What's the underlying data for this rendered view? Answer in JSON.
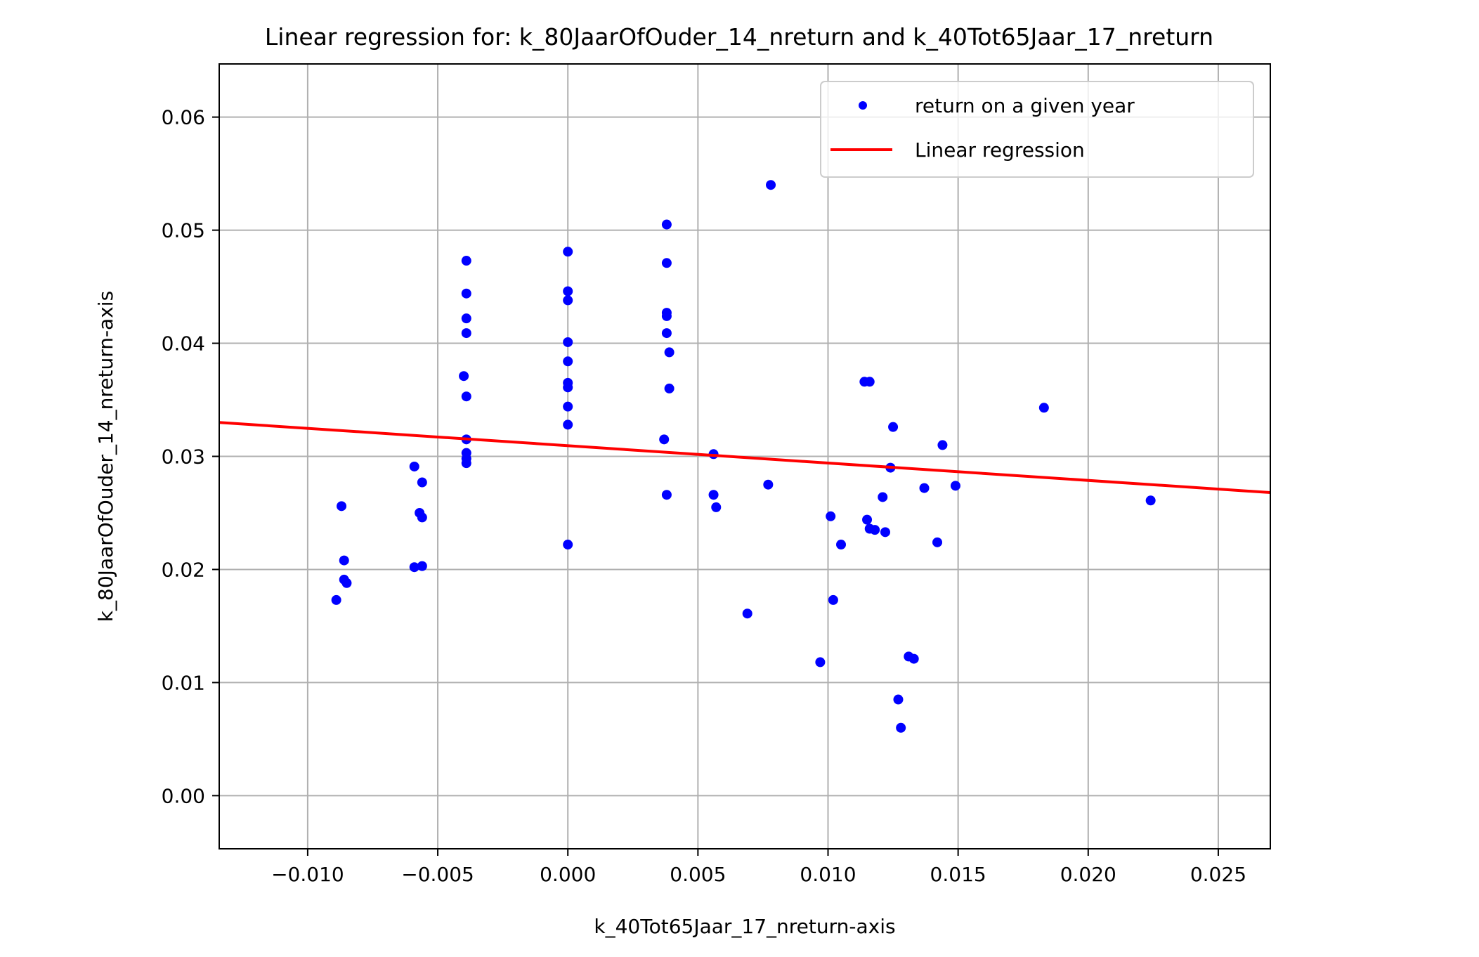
{
  "chart_data": {
    "type": "scatter",
    "title": "Linear regression for: k_80JaarOfOuder_14_nreturn and k_40Tot65Jaar_17_nreturn",
    "xlabel": "k_40Tot65Jaar_17_nreturn-axis",
    "ylabel": "k_80JaarOfOuder_14_nreturn-axis",
    "xlim": [
      -0.0134,
      0.027
    ],
    "ylim": [
      -0.0047,
      0.0647
    ],
    "xticks": [
      -0.01,
      -0.005,
      0.0,
      0.005,
      0.01,
      0.015,
      0.02,
      0.025
    ],
    "xtick_labels": [
      "−0.010",
      "−0.005",
      "0.000",
      "0.005",
      "0.010",
      "0.015",
      "0.020",
      "0.025"
    ],
    "yticks": [
      0.0,
      0.01,
      0.02,
      0.03,
      0.04,
      0.05,
      0.06
    ],
    "ytick_labels": [
      "0.00",
      "0.01",
      "0.02",
      "0.03",
      "0.04",
      "0.05",
      "0.06"
    ],
    "grid": true,
    "legend_position": "top-right",
    "colors": {
      "points": "#0000ff",
      "line": "#ff0000",
      "grid": "#b0b0b0",
      "axes": "#000000"
    },
    "series": [
      {
        "name": "return on a given year",
        "kind": "scatter",
        "points": [
          [
            -0.0089,
            0.0173
          ],
          [
            -0.0087,
            0.0256
          ],
          [
            -0.0086,
            0.0191
          ],
          [
            -0.0086,
            0.0208
          ],
          [
            -0.0085,
            0.0188
          ],
          [
            -0.0059,
            0.0202
          ],
          [
            -0.0059,
            0.0291
          ],
          [
            -0.0057,
            0.025
          ],
          [
            -0.0056,
            0.0246
          ],
          [
            -0.0056,
            0.0277
          ],
          [
            -0.0056,
            0.0203
          ],
          [
            -0.0039,
            0.0473
          ],
          [
            -0.0039,
            0.0444
          ],
          [
            -0.0039,
            0.0422
          ],
          [
            -0.0039,
            0.0409
          ],
          [
            -0.004,
            0.0371
          ],
          [
            -0.0039,
            0.0353
          ],
          [
            -0.0039,
            0.0315
          ],
          [
            -0.0039,
            0.0303
          ],
          [
            -0.0039,
            0.0298
          ],
          [
            -0.0039,
            0.0294
          ],
          [
            0.0,
            0.0481
          ],
          [
            0.0,
            0.0446
          ],
          [
            0.0,
            0.0438
          ],
          [
            0.0,
            0.0401
          ],
          [
            0.0,
            0.0384
          ],
          [
            0.0,
            0.0365
          ],
          [
            0.0,
            0.0361
          ],
          [
            0.0,
            0.0344
          ],
          [
            0.0,
            0.0328
          ],
          [
            0.0,
            0.0222
          ],
          [
            0.0038,
            0.0505
          ],
          [
            0.0038,
            0.0471
          ],
          [
            0.0038,
            0.0427
          ],
          [
            0.0038,
            0.0424
          ],
          [
            0.0038,
            0.0409
          ],
          [
            0.0039,
            0.0392
          ],
          [
            0.0039,
            0.036
          ],
          [
            0.0037,
            0.0315
          ],
          [
            0.0038,
            0.0266
          ],
          [
            0.0056,
            0.0302
          ],
          [
            0.0056,
            0.0266
          ],
          [
            0.0057,
            0.0255
          ],
          [
            0.0069,
            0.0161
          ],
          [
            0.0078,
            0.054
          ],
          [
            0.0077,
            0.0275
          ],
          [
            0.0097,
            0.0118
          ],
          [
            0.0101,
            0.0247
          ],
          [
            0.0102,
            0.0173
          ],
          [
            0.0105,
            0.0222
          ],
          [
            0.0114,
            0.0366
          ],
          [
            0.0116,
            0.0366
          ],
          [
            0.0115,
            0.0244
          ],
          [
            0.0116,
            0.0236
          ],
          [
            0.0118,
            0.0235
          ],
          [
            0.0121,
            0.0264
          ],
          [
            0.0122,
            0.0233
          ],
          [
            0.0124,
            0.029
          ],
          [
            0.0125,
            0.0326
          ],
          [
            0.0127,
            0.0085
          ],
          [
            0.0128,
            0.006
          ],
          [
            0.0131,
            0.0123
          ],
          [
            0.0133,
            0.0121
          ],
          [
            0.0137,
            0.0272
          ],
          [
            0.0142,
            0.0224
          ],
          [
            0.0144,
            0.031
          ],
          [
            0.0149,
            0.0274
          ],
          [
            0.0183,
            0.0343
          ],
          [
            0.0224,
            0.0261
          ]
        ]
      },
      {
        "name": "Linear regression",
        "kind": "line",
        "points": [
          [
            -0.0134,
            0.033
          ],
          [
            0.027,
            0.0268
          ]
        ]
      }
    ]
  }
}
